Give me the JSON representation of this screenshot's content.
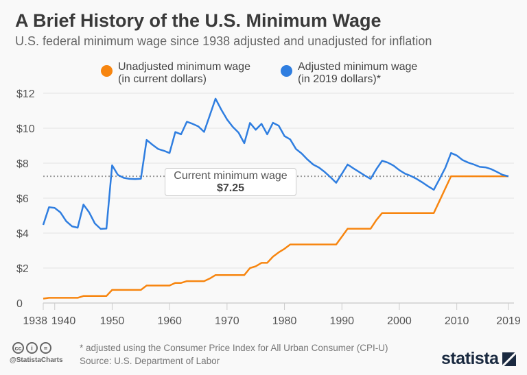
{
  "chart_data": {
    "type": "line",
    "title": "A Brief History of the U.S. Minimum Wage",
    "subtitle": "U.S. federal minimum wage since 1938 adjusted and unadjusted for inflation",
    "xlabel": "",
    "ylabel": "",
    "ylim": [
      0,
      12
    ],
    "xlim": [
      1938,
      2019
    ],
    "grid": true,
    "legend_position": "top",
    "y_ticks": [
      "0",
      "$2",
      "$4",
      "$6",
      "$8",
      "$10",
      "$12"
    ],
    "x_ticks": [
      "1938",
      "1940",
      "1950",
      "1960",
      "1970",
      "1980",
      "1990",
      "2000",
      "2010",
      "2019"
    ],
    "x": [
      1938,
      1939,
      1940,
      1941,
      1942,
      1943,
      1944,
      1945,
      1946,
      1947,
      1948,
      1949,
      1950,
      1951,
      1952,
      1953,
      1954,
      1955,
      1956,
      1957,
      1958,
      1959,
      1960,
      1961,
      1962,
      1963,
      1964,
      1965,
      1966,
      1967,
      1968,
      1969,
      1970,
      1971,
      1972,
      1973,
      1974,
      1975,
      1976,
      1977,
      1978,
      1979,
      1980,
      1981,
      1982,
      1983,
      1984,
      1985,
      1986,
      1987,
      1988,
      1989,
      1990,
      1991,
      1992,
      1993,
      1994,
      1995,
      1996,
      1997,
      1998,
      1999,
      2000,
      2001,
      2002,
      2003,
      2004,
      2005,
      2006,
      2007,
      2008,
      2009,
      2010,
      2011,
      2012,
      2013,
      2014,
      2015,
      2016,
      2017,
      2018,
      2019
    ],
    "series": [
      {
        "name": "Unadjusted minimum wage\n(in current dollars)",
        "color": "#f7850f",
        "values": [
          0.25,
          0.3,
          0.3,
          0.3,
          0.3,
          0.3,
          0.3,
          0.4,
          0.4,
          0.4,
          0.4,
          0.4,
          0.75,
          0.75,
          0.75,
          0.75,
          0.75,
          0.75,
          1.0,
          1.0,
          1.0,
          1.0,
          1.0,
          1.15,
          1.15,
          1.25,
          1.25,
          1.25,
          1.25,
          1.4,
          1.6,
          1.6,
          1.6,
          1.6,
          1.6,
          1.6,
          2.0,
          2.1,
          2.3,
          2.3,
          2.65,
          2.9,
          3.1,
          3.35,
          3.35,
          3.35,
          3.35,
          3.35,
          3.35,
          3.35,
          3.35,
          3.35,
          3.8,
          4.25,
          4.25,
          4.25,
          4.25,
          4.25,
          4.75,
          5.15,
          5.15,
          5.15,
          5.15,
          5.15,
          5.15,
          5.15,
          5.15,
          5.15,
          5.15,
          5.85,
          6.55,
          7.25,
          7.25,
          7.25,
          7.25,
          7.25,
          7.25,
          7.25,
          7.25,
          7.25,
          7.25,
          7.25
        ]
      },
      {
        "name": "Adjusted minimum wage\n(in 2019 dollars)*",
        "color": "#2f7ee0",
        "values": [
          4.47,
          5.48,
          5.44,
          5.18,
          4.68,
          4.39,
          4.31,
          5.63,
          5.18,
          4.55,
          4.24,
          4.26,
          7.88,
          7.33,
          7.16,
          7.1,
          7.09,
          7.11,
          9.33,
          9.06,
          8.81,
          8.71,
          8.58,
          9.78,
          9.65,
          10.37,
          10.25,
          10.1,
          9.79,
          10.73,
          11.69,
          11.06,
          10.5,
          10.08,
          9.75,
          9.14,
          10.3,
          9.91,
          10.25,
          9.65,
          10.31,
          10.14,
          9.55,
          9.36,
          8.81,
          8.55,
          8.21,
          7.92,
          7.75,
          7.5,
          7.2,
          6.88,
          7.4,
          7.92,
          7.7,
          7.5,
          7.29,
          7.1,
          7.66,
          8.14,
          8.03,
          7.86,
          7.6,
          7.4,
          7.27,
          7.1,
          6.9,
          6.68,
          6.48,
          7.1,
          7.73,
          8.58,
          8.44,
          8.18,
          8.03,
          7.92,
          7.79,
          7.76,
          7.66,
          7.5,
          7.33,
          7.25
        ]
      }
    ],
    "annotation": {
      "label": "Current minimum wage",
      "value_label": "$7.25",
      "value": 7.25
    }
  },
  "footer": {
    "note": "* adjusted using the Consumer Price Index for All Urban Consumer (CPI-U)",
    "source": "Source: U.S. Department of Labor",
    "handle": "@StatistaCharts",
    "logo": "statista",
    "cc_icons": [
      "cc",
      "by",
      "nd"
    ]
  }
}
